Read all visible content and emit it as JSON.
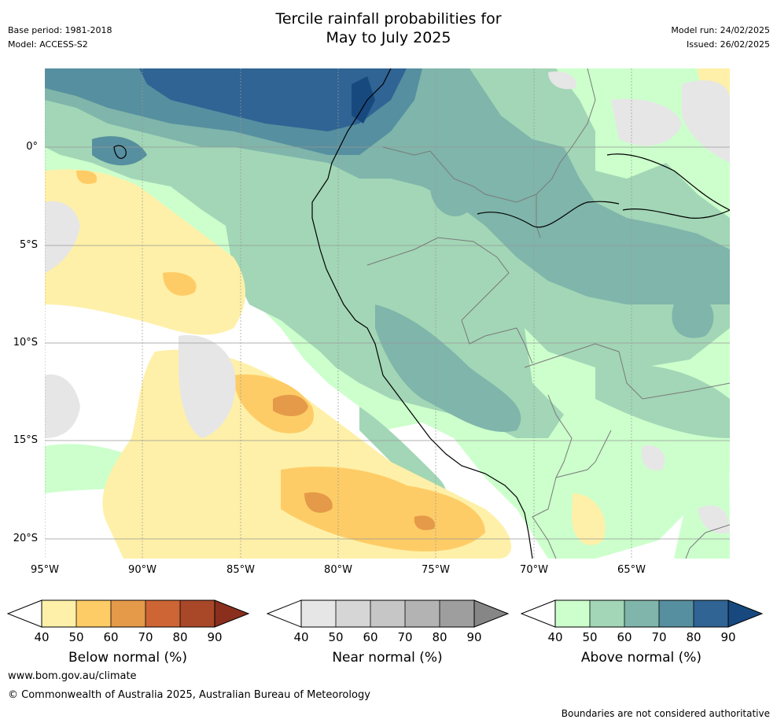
{
  "header": {
    "title_line1": "Tercile rainfall probabilities for",
    "title_line2": "May to July 2025",
    "base_period": "Base period: 1981-2018",
    "model": "Model: ACCESS-S2",
    "model_run": "Model run: 24/02/2025",
    "issued": "Issued: 26/02/2025"
  },
  "map": {
    "lat_labels": [
      "0°",
      "5°S",
      "10°S",
      "15°S",
      "20°S"
    ],
    "lon_labels": [
      "95°W",
      "90°W",
      "85°W",
      "80°W",
      "75°W",
      "70°W",
      "65°W"
    ]
  },
  "colorbars": [
    {
      "title": "Below normal (%)",
      "ticks": [
        "40",
        "50",
        "60",
        "70",
        "80",
        "90"
      ],
      "colors": [
        "#fef0a8",
        "#fecc66",
        "#e49a49",
        "#cd6535",
        "#a84829",
        "#8a2f1e"
      ]
    },
    {
      "title": "Near normal (%)",
      "ticks": [
        "40",
        "50",
        "60",
        "70",
        "80",
        "90"
      ],
      "colors": [
        "#e6e6e6",
        "#d6d6d6",
        "#c6c6c6",
        "#b3b3b3",
        "#9e9e9e",
        "#868686"
      ]
    },
    {
      "title": "Above normal (%)",
      "ticks": [
        "40",
        "50",
        "60",
        "70",
        "80",
        "90"
      ],
      "colors": [
        "#ccffcc",
        "#a2d6b6",
        "#7fb5aa",
        "#568f9f",
        "#2f6494",
        "#17497f"
      ]
    }
  ],
  "footer": {
    "website": "www.bom.gov.au/climate",
    "copyright": "© Commonwealth of Australia 2025, Australian Bureau of Meteorology",
    "disclaimer": "Boundaries are not considered authoritative"
  }
}
